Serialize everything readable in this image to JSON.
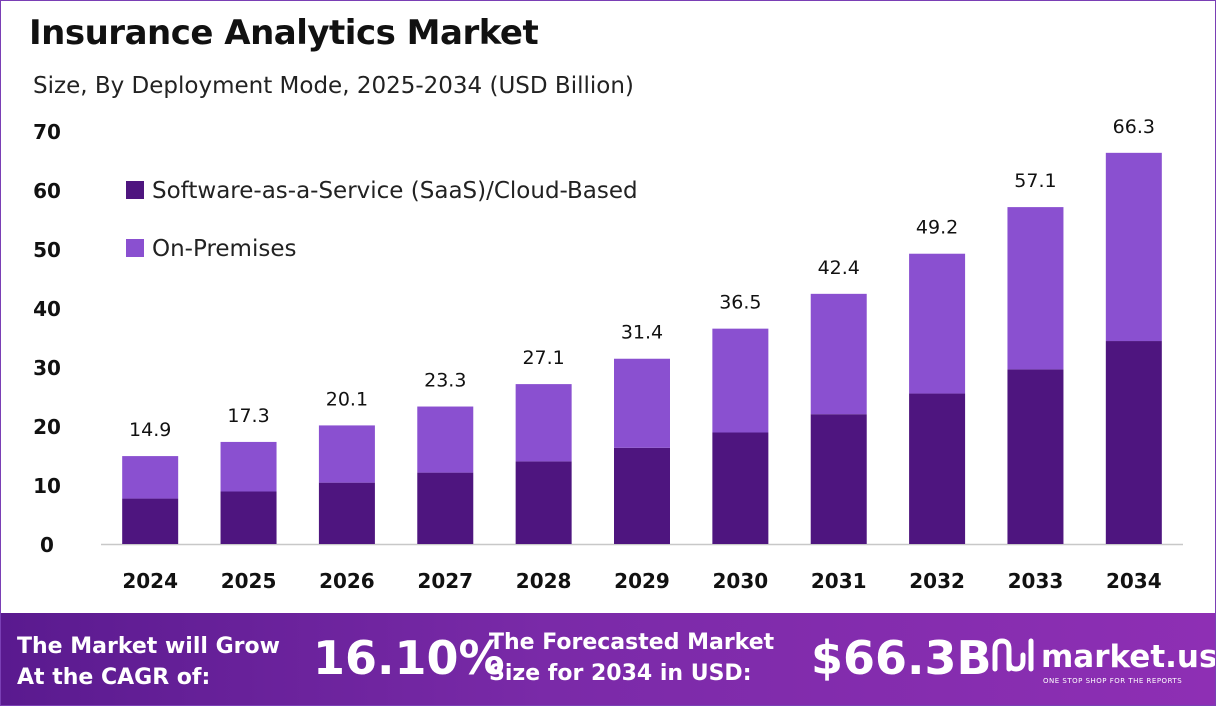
{
  "header": {
    "title": "Insurance Analytics Market",
    "subtitle": "Size, By Deployment Mode, 2025-2034 (USD Billion)"
  },
  "colors": {
    "saas": "#4e157f",
    "on_premises": "#8a50d0",
    "footer_start": "#5a1a8f",
    "footer_end": "#8e2fb4"
  },
  "chart_data": {
    "type": "bar",
    "stacked": true,
    "title": "Insurance Analytics Market",
    "subtitle": "Size, By Deployment Mode, 2025-2034 (USD Billion)",
    "categories": [
      "2024",
      "2025",
      "2026",
      "2027",
      "2028",
      "2029",
      "2030",
      "2031",
      "2032",
      "2033",
      "2034"
    ],
    "series": [
      {
        "name": "Software-as-a-Service (SaaS)/Cloud-Based",
        "values": [
          7.7,
          8.9,
          10.4,
          12.1,
          14.0,
          16.3,
          18.9,
          22.0,
          25.5,
          29.6,
          34.4
        ]
      },
      {
        "name": "On-Premises",
        "values": [
          7.2,
          8.4,
          9.7,
          11.2,
          13.1,
          15.1,
          17.6,
          20.4,
          23.7,
          27.5,
          31.9
        ]
      }
    ],
    "totals": [
      "14.9",
      "17.3",
      "20.1",
      "23.3",
      "27.1",
      "31.4",
      "36.5",
      "42.4",
      "49.2",
      "57.1",
      "66.3"
    ],
    "yticks": [
      "0",
      "10",
      "20",
      "30",
      "40",
      "50",
      "60",
      "70"
    ],
    "ylim": [
      0,
      70
    ],
    "grid": false,
    "legend_position": "top-left"
  },
  "footer": {
    "cagr_label_line1": "The Market will Grow",
    "cagr_label_line2": "At the CAGR of:",
    "cagr_value": "16.10%",
    "forecast_label_line1": "The Forecasted Market",
    "forecast_label_line2": "Size for 2034 in USD:",
    "forecast_value": "$66.3B",
    "brand_name": "market.us",
    "brand_tagline": "ONE STOP SHOP FOR THE REPORTS"
  }
}
